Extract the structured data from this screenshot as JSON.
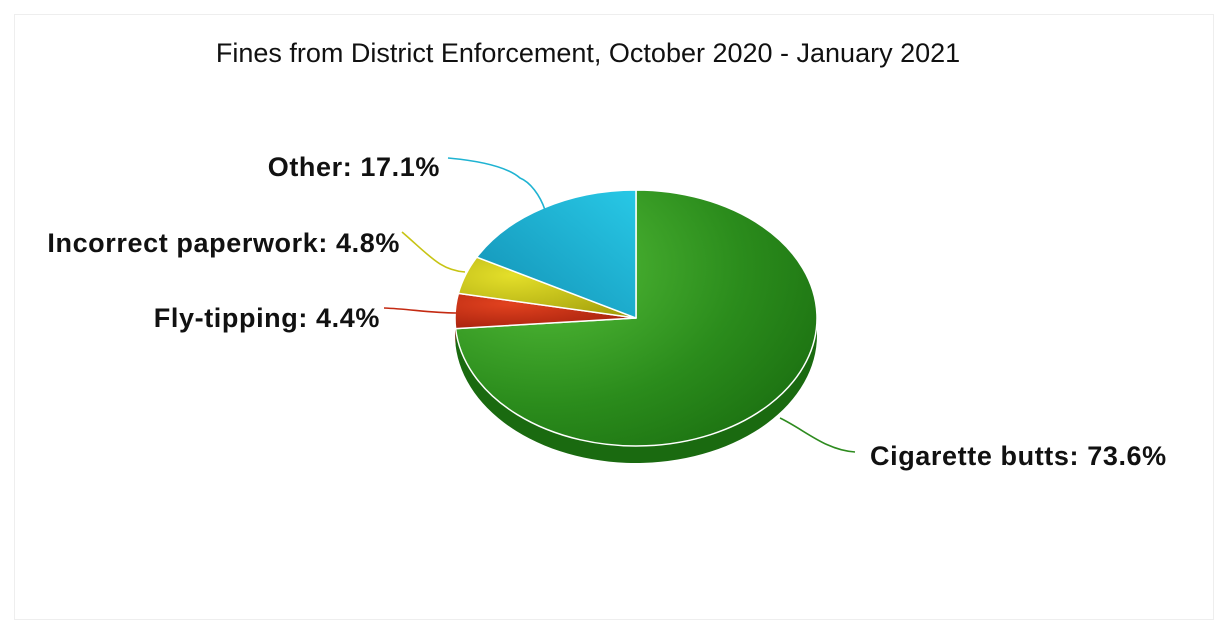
{
  "chart_data": {
    "type": "pie",
    "title": "Fines from District Enforcement, October 2020 - January 2021",
    "slices": [
      {
        "label": "Cigarette butts",
        "value": 73.6,
        "display": "Cigarette butts: 73.6%",
        "color": "#2e8b1f"
      },
      {
        "label": "Fly-tipping",
        "value": 4.4,
        "display": "Fly-tipping: 4.4%",
        "color": "#c42a12"
      },
      {
        "label": "Incorrect paperwork",
        "value": 4.8,
        "display": "Incorrect paperwork: 4.8%",
        "color": "#c7c414"
      },
      {
        "label": "Other",
        "value": 17.1,
        "display": "Other: 17.1%",
        "color": "#1fb3d2"
      }
    ],
    "legend": "none",
    "style": "3d"
  }
}
